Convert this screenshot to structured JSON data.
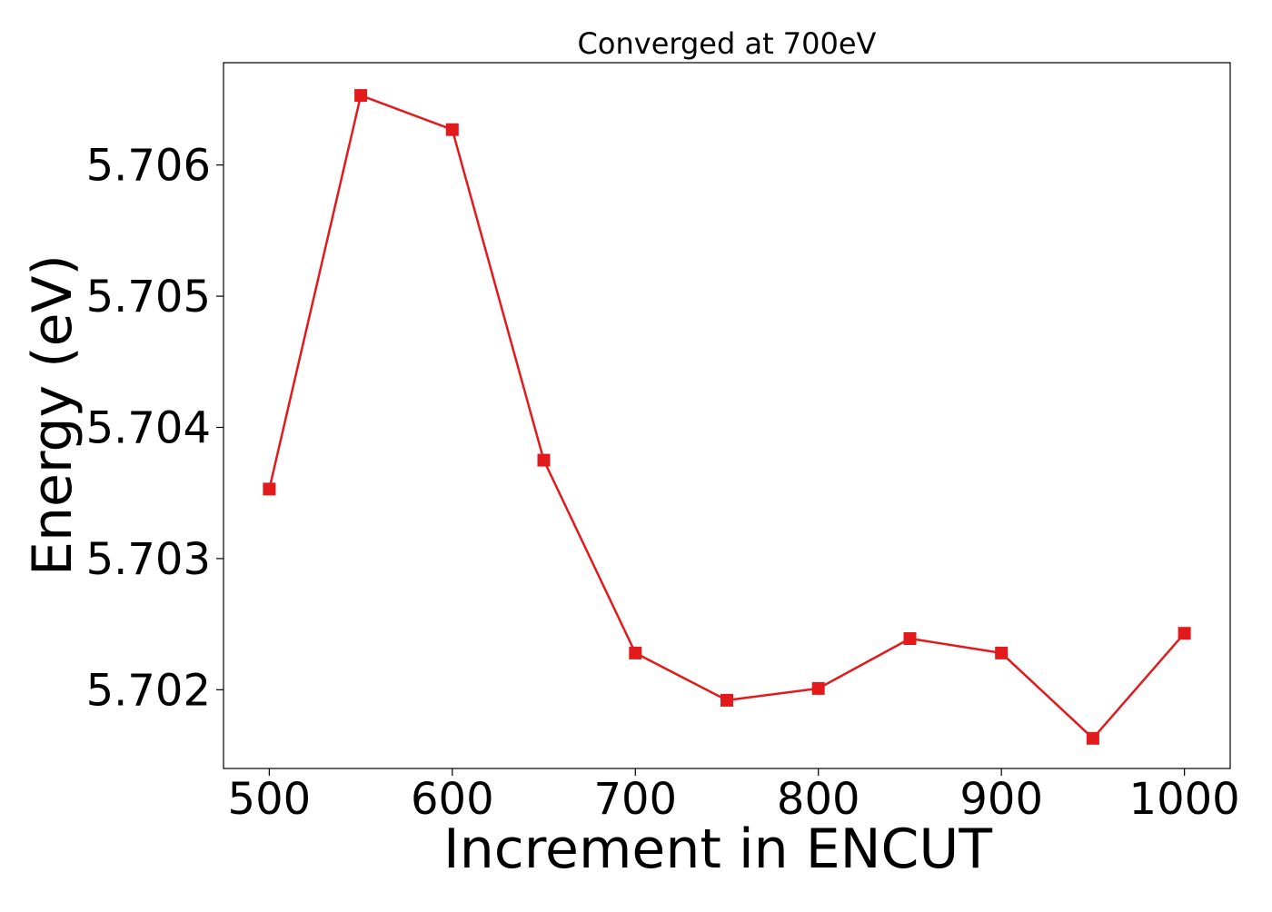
{
  "chart_data": {
    "type": "line",
    "title": "Converged at 700eV",
    "xlabel": "Increment in ENCUT",
    "ylabel": "Energy (eV)",
    "xlim": [
      475,
      1025
    ],
    "ylim": [
      5.7014,
      5.70678
    ],
    "x_ticks": [
      500,
      600,
      700,
      800,
      900,
      1000
    ],
    "x_tick_labels": [
      "500",
      "600",
      "700",
      "800",
      "900",
      "1000"
    ],
    "y_ticks": [
      5.702,
      5.703,
      5.704,
      5.705,
      5.706
    ],
    "y_tick_labels": [
      "5.702",
      "5.703",
      "5.704",
      "5.705",
      "5.706"
    ],
    "grid": false,
    "series": [
      {
        "color": "#e31a1c",
        "marker": "square",
        "x": [
          500,
          550,
          600,
          650,
          700,
          750,
          800,
          850,
          900,
          950,
          1000
        ],
        "y": [
          5.70353,
          5.70653,
          5.70627,
          5.70375,
          5.70228,
          5.70192,
          5.70201,
          5.70239,
          5.70228,
          5.70163,
          5.70243
        ]
      }
    ]
  }
}
